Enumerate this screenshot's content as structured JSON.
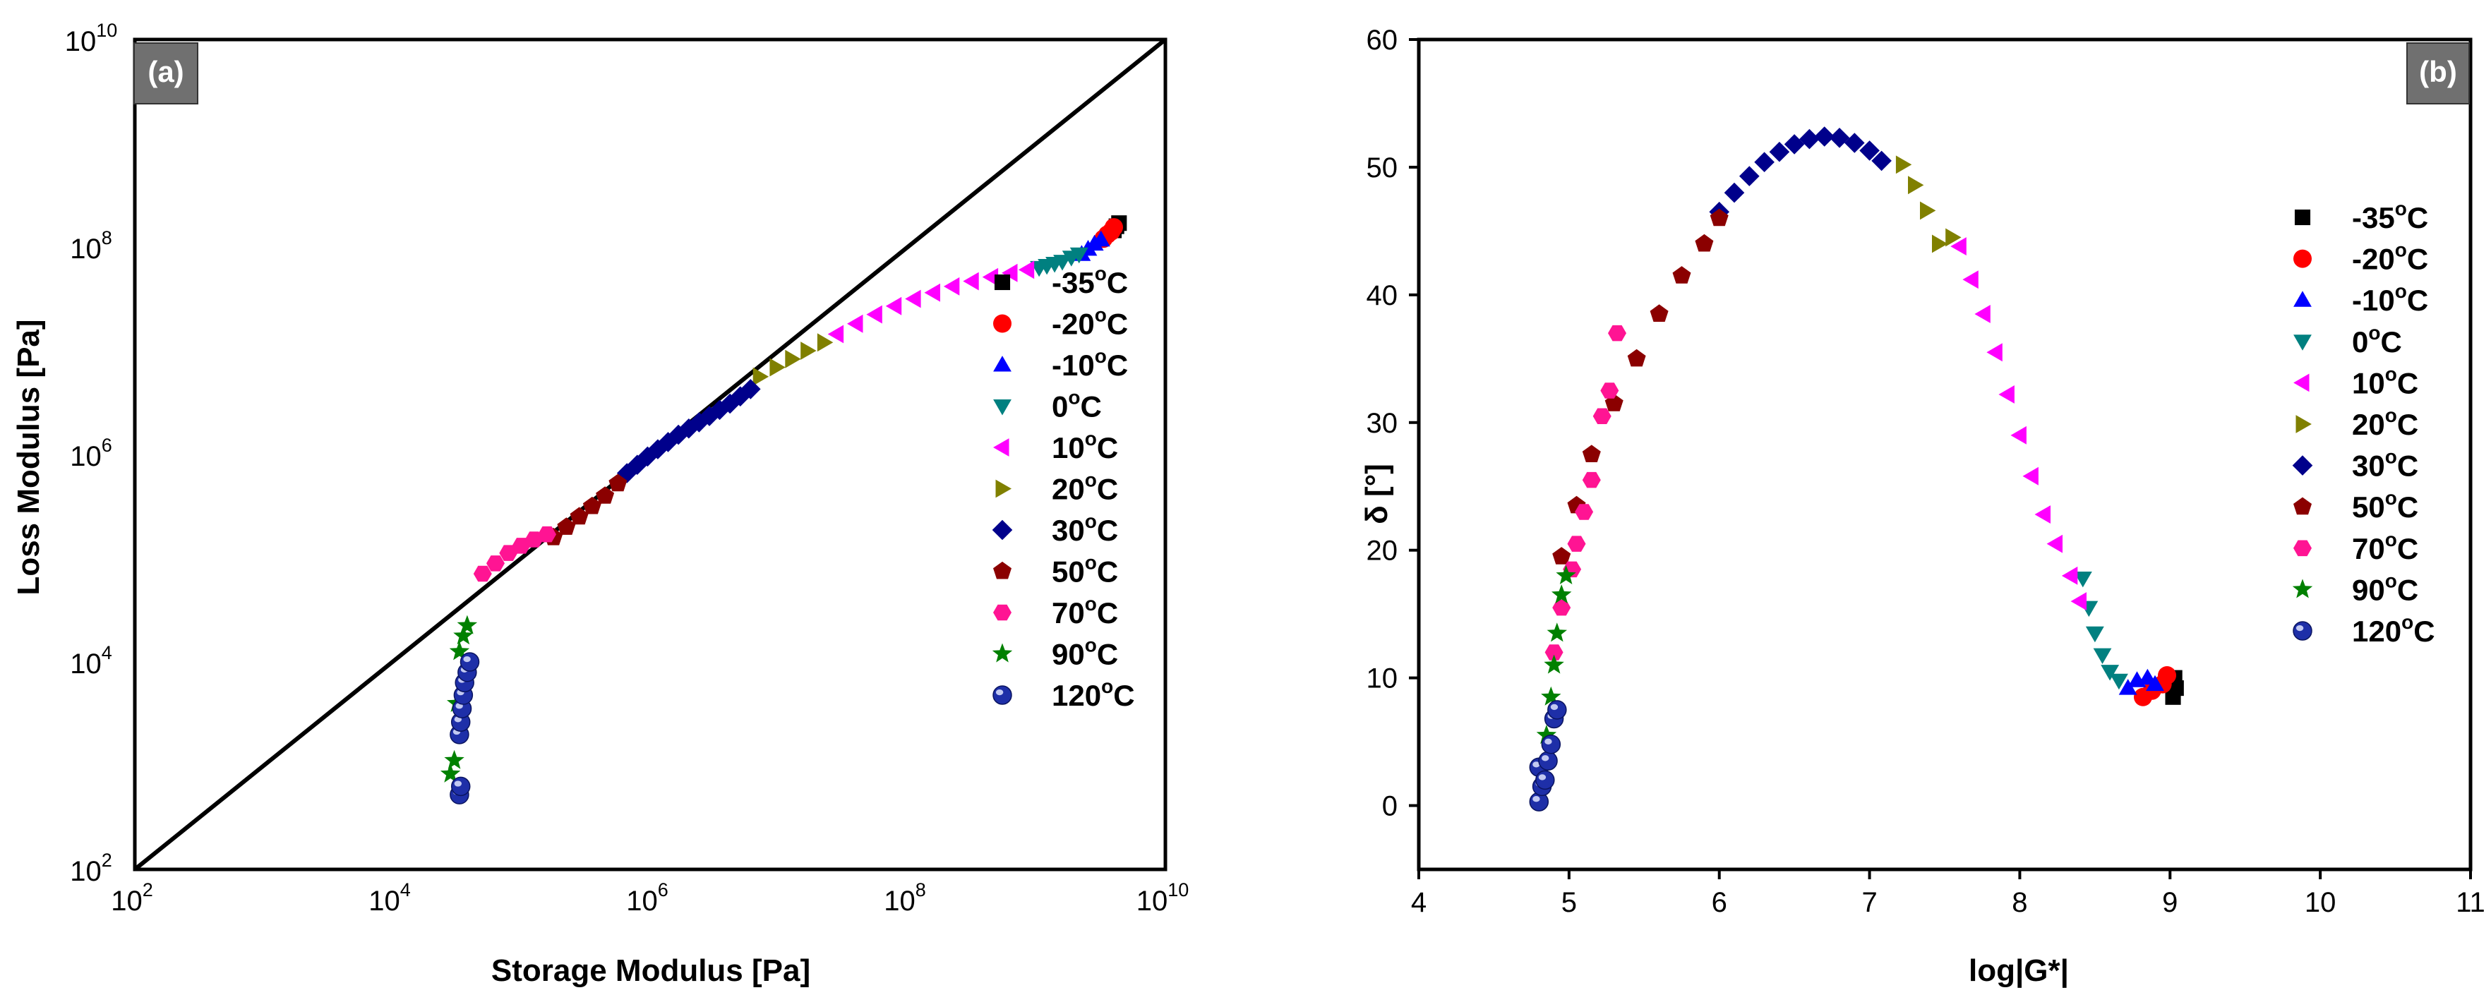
{
  "chart_data": [
    {
      "type": "scatter",
      "panel": "(a)",
      "xlabel": "Storage Modulus [Pa]",
      "ylabel": "Loss Modulus [Pa]",
      "xscale": "log",
      "yscale": "log",
      "xlim": [
        100,
        10000000000
      ],
      "ylim": [
        100,
        10000000000
      ],
      "x_tick_labels": [
        {
          "base": "10",
          "exp": "2",
          "value": 100
        },
        {
          "base": "10",
          "exp": "4",
          "value": 10000
        },
        {
          "base": "10",
          "exp": "6",
          "value": 1000000
        },
        {
          "base": "10",
          "exp": "8",
          "value": 100000000
        },
        {
          "base": "10",
          "exp": "10",
          "value": 10000000000
        }
      ],
      "y_tick_labels": [
        {
          "base": "10",
          "exp": "2",
          "value": 100
        },
        {
          "base": "10",
          "exp": "4",
          "value": 10000
        },
        {
          "base": "10",
          "exp": "6",
          "value": 1000000
        },
        {
          "base": "10",
          "exp": "8",
          "value": 100000000
        },
        {
          "base": "10",
          "exp": "10",
          "value": 10000000000
        }
      ],
      "reference_line": "G' = G'' (y = x)",
      "legend_position": "right",
      "series": [
        {
          "name": "-35°C",
          "temp": "-35",
          "color": "#000000",
          "marker": "square",
          "points": [
            [
              9.6,
              8.16
            ],
            [
              9.62,
              8.2
            ],
            [
              9.64,
              8.23
            ]
          ]
        },
        {
          "name": "-20°C",
          "temp": "-20",
          "color": "#ff0000",
          "marker": "circle",
          "points": [
            [
              9.52,
              8.08
            ],
            [
              9.55,
              8.12
            ],
            [
              9.58,
              8.15
            ],
            [
              9.6,
              8.19
            ]
          ]
        },
        {
          "name": "-10°C",
          "temp": "-10",
          "color": "#0000ff",
          "marker": "triangle-up",
          "points": [
            [
              9.35,
              7.93
            ],
            [
              9.4,
              7.98
            ],
            [
              9.45,
              8.03
            ],
            [
              9.5,
              8.07
            ]
          ]
        },
        {
          "name": "0°C",
          "temp": "0",
          "color": "#008080",
          "marker": "triangle-down",
          "points": [
            [
              9.02,
              7.8
            ],
            [
              9.08,
              7.82
            ],
            [
              9.14,
              7.84
            ],
            [
              9.2,
              7.86
            ],
            [
              9.27,
              7.9
            ],
            [
              9.33,
              7.93
            ]
          ]
        },
        {
          "name": "10°C",
          "temp": "10",
          "color": "#ff00ff",
          "marker": "triangle-left",
          "points": [
            [
              7.45,
              7.16
            ],
            [
              7.6,
              7.26
            ],
            [
              7.75,
              7.35
            ],
            [
              7.9,
              7.43
            ],
            [
              8.05,
              7.5
            ],
            [
              8.2,
              7.56
            ],
            [
              8.35,
              7.62
            ],
            [
              8.5,
              7.67
            ],
            [
              8.65,
              7.71
            ],
            [
              8.8,
              7.75
            ],
            [
              8.93,
              7.78
            ]
          ]
        },
        {
          "name": "20°C",
          "temp": "20",
          "color": "#808000",
          "marker": "triangle-right",
          "points": [
            [
              6.85,
              6.75
            ],
            [
              6.98,
              6.84
            ],
            [
              7.1,
              6.92
            ],
            [
              7.22,
              7.0
            ],
            [
              7.35,
              7.08
            ]
          ]
        },
        {
          "name": "30°C",
          "temp": "30",
          "color": "#00008b",
          "marker": "diamond",
          "points": [
            [
              5.82,
              5.82
            ],
            [
              5.9,
              5.9
            ],
            [
              5.98,
              5.98
            ],
            [
              6.06,
              6.05
            ],
            [
              6.14,
              6.12
            ],
            [
              6.22,
              6.19
            ],
            [
              6.3,
              6.25
            ],
            [
              6.38,
              6.31
            ],
            [
              6.46,
              6.37
            ],
            [
              6.54,
              6.43
            ],
            [
              6.62,
              6.49
            ],
            [
              6.7,
              6.56
            ],
            [
              6.78,
              6.63
            ]
          ]
        },
        {
          "name": "50°C",
          "temp": "50",
          "color": "#8b0000",
          "marker": "pentagon",
          "points": [
            [
              5.25,
              5.2
            ],
            [
              5.35,
              5.3
            ],
            [
              5.45,
              5.4
            ],
            [
              5.55,
              5.5
            ],
            [
              5.65,
              5.6
            ],
            [
              5.75,
              5.72
            ]
          ]
        },
        {
          "name": "70°C",
          "temp": "70",
          "color": "#ff1493",
          "marker": "hexagon",
          "points": [
            [
              4.7,
              4.85
            ],
            [
              4.8,
              4.95
            ],
            [
              4.9,
              5.05
            ],
            [
              5.0,
              5.12
            ],
            [
              5.1,
              5.18
            ],
            [
              5.2,
              5.23
            ]
          ]
        },
        {
          "name": "90°C",
          "temp": "90",
          "color": "#008000",
          "marker": "star",
          "points": [
            [
              4.45,
              2.92
            ],
            [
              4.48,
              3.05
            ],
            [
              4.5,
              3.6
            ],
            [
              4.52,
              4.1
            ],
            [
              4.55,
              4.25
            ],
            [
              4.58,
              4.35
            ]
          ]
        },
        {
          "name": "120°C",
          "temp": "120",
          "color": "#1e2fa8",
          "marker": "ball",
          "points": [
            [
              4.52,
              2.72
            ],
            [
              4.53,
              2.8
            ],
            [
              4.52,
              3.3
            ],
            [
              4.53,
              3.42
            ],
            [
              4.54,
              3.55
            ],
            [
              4.55,
              3.68
            ],
            [
              4.56,
              3.8
            ],
            [
              4.58,
              3.9
            ],
            [
              4.6,
              4.0
            ]
          ]
        }
      ]
    },
    {
      "type": "scatter",
      "panel": "(b)",
      "xlabel": "log|G*|",
      "ylabel": "δ [°]",
      "xlim": [
        4,
        11
      ],
      "ylim": [
        -5,
        60
      ],
      "x_ticks": [
        "4",
        "5",
        "6",
        "7",
        "8",
        "9",
        "10",
        "11"
      ],
      "y_ticks": [
        "0",
        "10",
        "20",
        "30",
        "40",
        "50",
        "60"
      ],
      "legend_position": "right",
      "series": [
        {
          "name": "-35°C",
          "temp": "-35",
          "color": "#000000",
          "marker": "square",
          "points": [
            [
              9.02,
              8.5
            ],
            [
              9.04,
              9.2
            ],
            [
              9.03,
              10.0
            ]
          ]
        },
        {
          "name": "-20°C",
          "temp": "-20",
          "color": "#ff0000",
          "marker": "circle",
          "points": [
            [
              8.82,
              8.5
            ],
            [
              8.88,
              9.0
            ],
            [
              8.95,
              9.5
            ],
            [
              8.98,
              10.2
            ]
          ]
        },
        {
          "name": "-10°C",
          "temp": "-10",
          "color": "#0000ff",
          "marker": "triangle-up",
          "points": [
            [
              8.72,
              9.2
            ],
            [
              8.78,
              9.8
            ],
            [
              8.85,
              10.0
            ],
            [
              8.9,
              9.5
            ]
          ]
        },
        {
          "name": "0°C",
          "temp": "0",
          "color": "#008080",
          "marker": "triangle-down",
          "points": [
            [
              8.42,
              17.8
            ],
            [
              8.46,
              15.5
            ],
            [
              8.5,
              13.5
            ],
            [
              8.55,
              11.8
            ],
            [
              8.6,
              10.5
            ],
            [
              8.66,
              9.8
            ]
          ]
        },
        {
          "name": "10°C",
          "temp": "10",
          "color": "#ff00ff",
          "marker": "triangle-left",
          "points": [
            [
              7.6,
              43.8
            ],
            [
              7.68,
              41.2
            ],
            [
              7.76,
              38.5
            ],
            [
              7.84,
              35.5
            ],
            [
              7.92,
              32.2
            ],
            [
              8.0,
              29.0
            ],
            [
              8.08,
              25.8
            ],
            [
              8.16,
              22.8
            ],
            [
              8.24,
              20.5
            ],
            [
              8.34,
              18.0
            ],
            [
              8.4,
              16.0
            ]
          ]
        },
        {
          "name": "20°C",
          "temp": "20",
          "color": "#808000",
          "marker": "triangle-right",
          "points": [
            [
              7.22,
              50.2
            ],
            [
              7.3,
              48.6
            ],
            [
              7.38,
              46.6
            ],
            [
              7.46,
              44.0
            ],
            [
              7.55,
              44.5
            ]
          ]
        },
        {
          "name": "30°C",
          "temp": "30",
          "color": "#00008b",
          "marker": "diamond",
          "points": [
            [
              6.0,
              46.5
            ],
            [
              6.1,
              48.0
            ],
            [
              6.2,
              49.3
            ],
            [
              6.3,
              50.4
            ],
            [
              6.4,
              51.2
            ],
            [
              6.5,
              51.8
            ],
            [
              6.6,
              52.2
            ],
            [
              6.7,
              52.4
            ],
            [
              6.8,
              52.3
            ],
            [
              6.9,
              51.9
            ],
            [
              7.0,
              51.3
            ],
            [
              7.08,
              50.5
            ]
          ]
        },
        {
          "name": "50°C",
          "temp": "50",
          "color": "#8b0000",
          "marker": "pentagon",
          "points": [
            [
              4.95,
              19.5
            ],
            [
              5.05,
              23.5
            ],
            [
              5.15,
              27.5
            ],
            [
              5.3,
              31.5
            ],
            [
              5.45,
              35.0
            ],
            [
              5.6,
              38.5
            ],
            [
              5.75,
              41.5
            ],
            [
              5.9,
              44.0
            ],
            [
              6.0,
              46.0
            ]
          ]
        },
        {
          "name": "70°C",
          "temp": "70",
          "color": "#ff1493",
          "marker": "hexagon",
          "points": [
            [
              4.9,
              12.0
            ],
            [
              4.95,
              15.5
            ],
            [
              5.02,
              18.5
            ],
            [
              5.05,
              20.5
            ],
            [
              5.1,
              23.0
            ],
            [
              5.15,
              25.5
            ],
            [
              5.22,
              30.5
            ],
            [
              5.27,
              32.5
            ],
            [
              5.32,
              37.0
            ]
          ]
        },
        {
          "name": "90°C",
          "temp": "90",
          "color": "#008000",
          "marker": "star",
          "points": [
            [
              4.85,
              5.5
            ],
            [
              4.88,
              8.5
            ],
            [
              4.9,
              11.0
            ],
            [
              4.92,
              13.5
            ],
            [
              4.95,
              16.5
            ],
            [
              4.98,
              18.0
            ]
          ]
        },
        {
          "name": "120°C",
          "temp": "120",
          "color": "#1e2fa8",
          "marker": "ball",
          "points": [
            [
              4.8,
              0.3
            ],
            [
              4.82,
              1.5
            ],
            [
              4.8,
              3.0
            ],
            [
              4.84,
              2.0
            ],
            [
              4.86,
              3.5
            ],
            [
              4.88,
              4.8
            ],
            [
              4.9,
              6.8
            ],
            [
              4.92,
              7.5
            ]
          ]
        }
      ]
    }
  ]
}
